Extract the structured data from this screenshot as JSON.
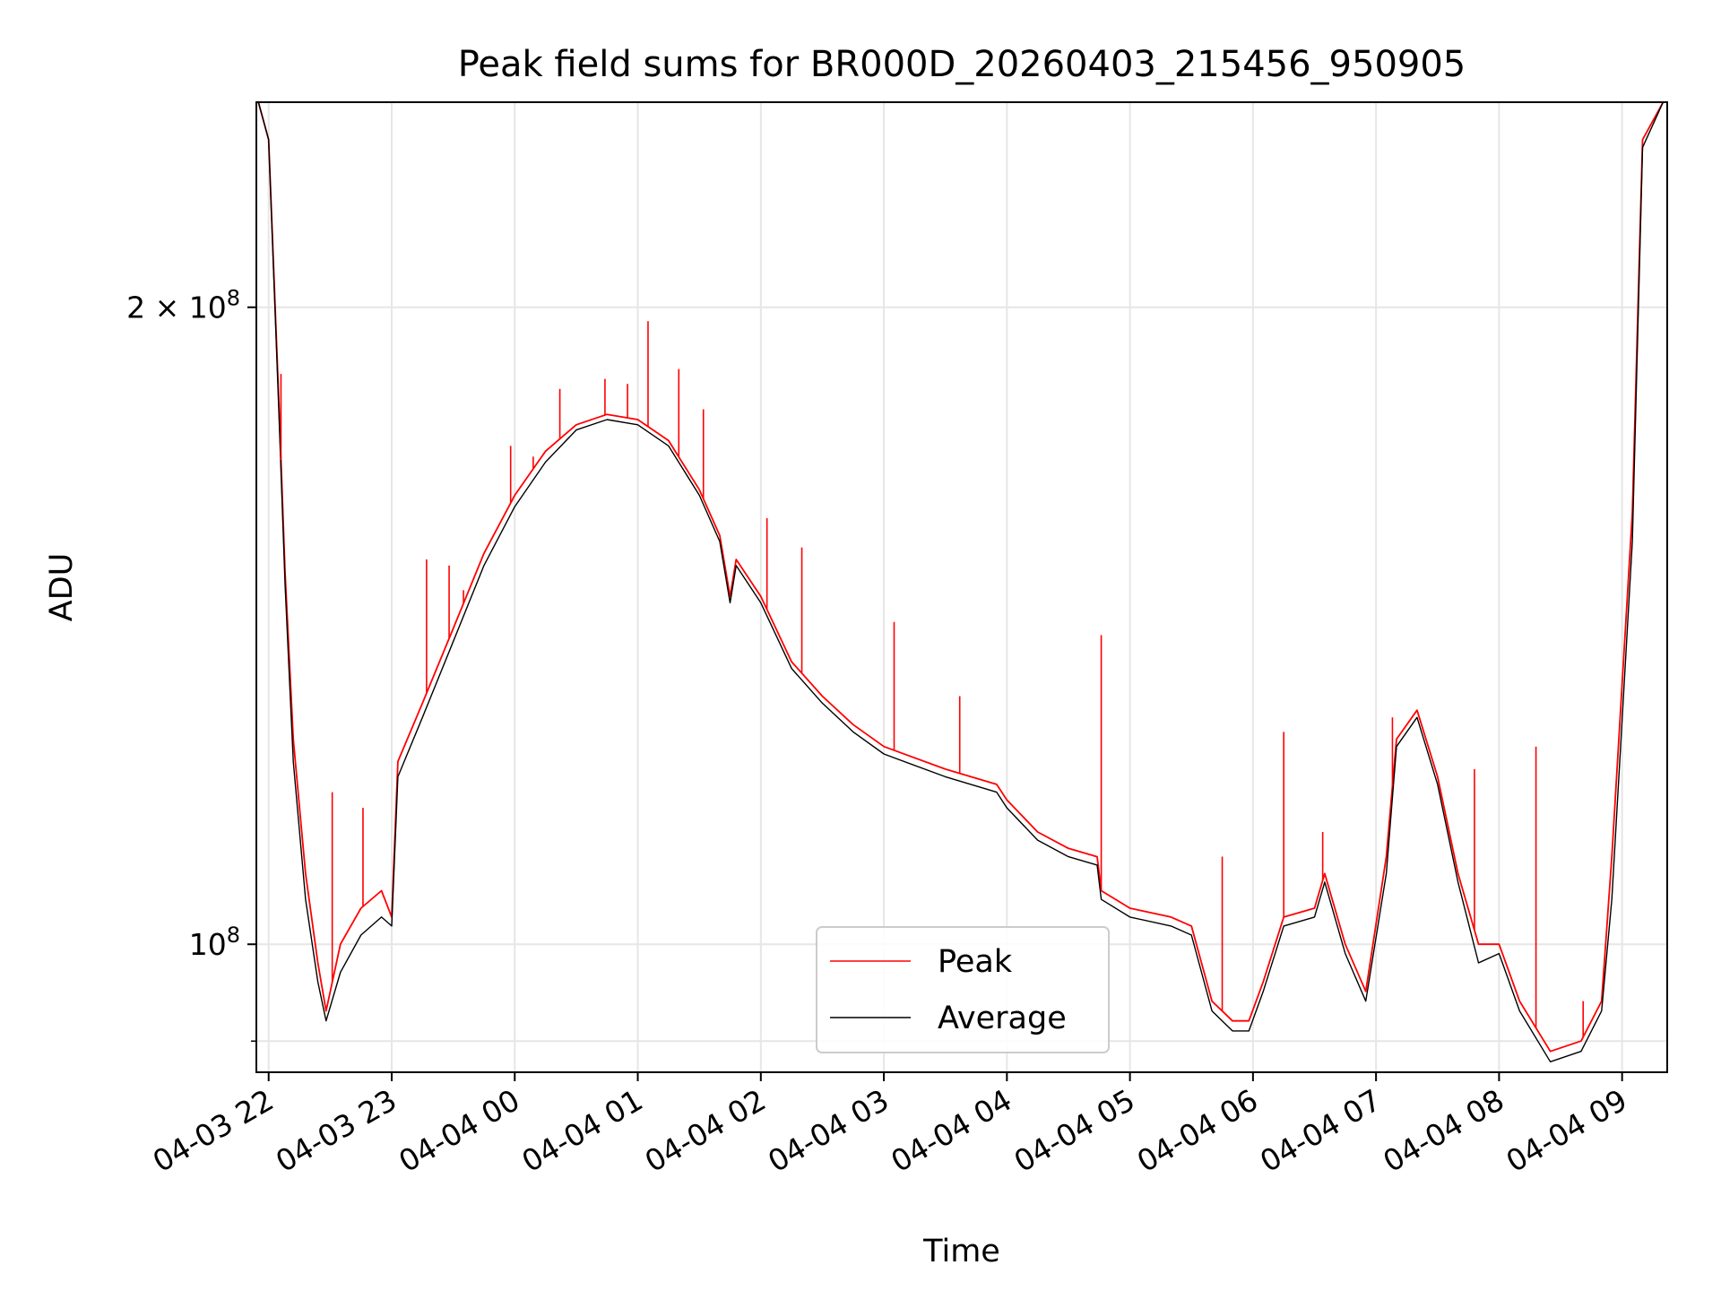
{
  "chart_data": {
    "type": "line",
    "title": "Peak field sums for BR000D_20260403_215456_950905",
    "xlabel": "Time",
    "ylabel": "ADU",
    "yscale": "log",
    "ylim": [
      87000000,
      250000000
    ],
    "xlim": [
      "2026-04-03 21:54",
      "2026-04-04 09:22"
    ],
    "grid": true,
    "legend_position": "bottom-center",
    "x_ticks": [
      {
        "t": "2026-04-03 22:00",
        "label": "04-03 22"
      },
      {
        "t": "2026-04-03 23:00",
        "label": "04-03 23"
      },
      {
        "t": "2026-04-04 00:00",
        "label": "04-04 00"
      },
      {
        "t": "2026-04-04 01:00",
        "label": "04-04 01"
      },
      {
        "t": "2026-04-04 02:00",
        "label": "04-04 02"
      },
      {
        "t": "2026-04-04 03:00",
        "label": "04-04 03"
      },
      {
        "t": "2026-04-04 04:00",
        "label": "04-04 04"
      },
      {
        "t": "2026-04-04 05:00",
        "label": "04-04 05"
      },
      {
        "t": "2026-04-04 06:00",
        "label": "04-04 06"
      },
      {
        "t": "2026-04-04 07:00",
        "label": "04-04 07"
      },
      {
        "t": "2026-04-04 08:00",
        "label": "04-04 08"
      },
      {
        "t": "2026-04-04 09:00",
        "label": "04-04 09"
      }
    ],
    "y_ticks": [
      {
        "value": 100000000,
        "base": "10",
        "exp": "8",
        "coef": ""
      },
      {
        "value": 200000000,
        "base": "10",
        "exp": "8",
        "coef": "2 × "
      }
    ],
    "series": [
      {
        "name": "Peak",
        "color": "#ff0000",
        "points": [
          [
            "2026-04-03 21:55",
            250000000
          ],
          [
            "2026-04-03 22:00",
            240000000
          ],
          [
            "2026-04-03 22:05",
            180000000
          ],
          [
            "2026-04-03 22:08",
            150000000
          ],
          [
            "2026-04-03 22:12",
            125000000
          ],
          [
            "2026-04-03 22:18",
            108000000
          ],
          [
            "2026-04-03 22:24",
            98000000
          ],
          [
            "2026-04-03 22:28",
            93000000
          ],
          [
            "2026-04-03 22:35",
            100000000
          ],
          [
            "2026-04-03 22:45",
            104000000
          ],
          [
            "2026-04-03 22:55",
            106000000
          ],
          [
            "2026-04-03 23:00",
            103000000
          ],
          [
            "2026-04-03 23:03",
            122000000
          ],
          [
            "2026-04-03 23:15",
            130000000
          ],
          [
            "2026-04-03 23:30",
            141000000
          ],
          [
            "2026-04-03 23:45",
            153000000
          ],
          [
            "2026-04-04 00:00",
            163000000
          ],
          [
            "2026-04-04 00:15",
            171000000
          ],
          [
            "2026-04-04 00:30",
            176000000
          ],
          [
            "2026-04-04 00:45",
            178000000
          ],
          [
            "2026-04-04 01:00",
            177000000
          ],
          [
            "2026-04-04 01:15",
            173000000
          ],
          [
            "2026-04-04 01:30",
            164000000
          ],
          [
            "2026-04-04 01:40",
            156000000
          ],
          [
            "2026-04-04 01:45",
            146000000
          ],
          [
            "2026-04-04 01:48",
            152000000
          ],
          [
            "2026-04-04 02:00",
            146000000
          ],
          [
            "2026-04-04 02:15",
            136000000
          ],
          [
            "2026-04-04 02:30",
            131000000
          ],
          [
            "2026-04-04 02:45",
            127000000
          ],
          [
            "2026-04-04 03:00",
            124000000
          ],
          [
            "2026-04-04 03:30",
            121000000
          ],
          [
            "2026-04-04 03:55",
            119000000
          ],
          [
            "2026-04-04 04:00",
            117000000
          ],
          [
            "2026-04-04 04:15",
            113000000
          ],
          [
            "2026-04-04 04:30",
            111000000
          ],
          [
            "2026-04-04 04:44",
            110000000
          ],
          [
            "2026-04-04 04:46",
            106000000
          ],
          [
            "2026-04-04 05:00",
            104000000
          ],
          [
            "2026-04-04 05:20",
            103000000
          ],
          [
            "2026-04-04 05:30",
            102000000
          ],
          [
            "2026-04-04 05:40",
            94000000
          ],
          [
            "2026-04-04 05:50",
            92000000
          ],
          [
            "2026-04-04 05:58",
            92000000
          ],
          [
            "2026-04-04 06:05",
            96000000
          ],
          [
            "2026-04-04 06:15",
            103000000
          ],
          [
            "2026-04-04 06:30",
            104000000
          ],
          [
            "2026-04-04 06:35",
            108000000
          ],
          [
            "2026-04-04 06:45",
            100000000
          ],
          [
            "2026-04-04 06:55",
            95000000
          ],
          [
            "2026-04-04 07:05",
            110000000
          ],
          [
            "2026-04-04 07:10",
            125000000
          ],
          [
            "2026-04-04 07:20",
            129000000
          ],
          [
            "2026-04-04 07:30",
            120000000
          ],
          [
            "2026-04-04 07:40",
            108000000
          ],
          [
            "2026-04-04 07:50",
            100000000
          ],
          [
            "2026-04-04 08:00",
            100000000
          ],
          [
            "2026-04-04 08:10",
            94000000
          ],
          [
            "2026-04-04 08:25",
            89000000
          ],
          [
            "2026-04-04 08:40",
            90000000
          ],
          [
            "2026-04-04 08:50",
            94000000
          ],
          [
            "2026-04-04 08:55",
            110000000
          ],
          [
            "2026-04-04 09:05",
            160000000
          ],
          [
            "2026-04-04 09:10",
            240000000
          ],
          [
            "2026-04-04 09:20",
            250000000
          ]
        ]
      },
      {
        "name": "Average",
        "color": "#000000",
        "points": [
          [
            "2026-04-03 21:55",
            250000000
          ],
          [
            "2026-04-03 22:00",
            240000000
          ],
          [
            "2026-04-03 22:05",
            178000000
          ],
          [
            "2026-04-03 22:08",
            148000000
          ],
          [
            "2026-04-03 22:12",
            122000000
          ],
          [
            "2026-04-03 22:18",
            105000000
          ],
          [
            "2026-04-03 22:24",
            96000000
          ],
          [
            "2026-04-03 22:28",
            92000000
          ],
          [
            "2026-04-03 22:35",
            97000000
          ],
          [
            "2026-04-03 22:45",
            101000000
          ],
          [
            "2026-04-03 22:55",
            103000000
          ],
          [
            "2026-04-03 23:00",
            102000000
          ],
          [
            "2026-04-03 23:03",
            120000000
          ],
          [
            "2026-04-03 23:15",
            128000000
          ],
          [
            "2026-04-03 23:30",
            139000000
          ],
          [
            "2026-04-03 23:45",
            151000000
          ],
          [
            "2026-04-04 00:00",
            161000000
          ],
          [
            "2026-04-04 00:15",
            169000000
          ],
          [
            "2026-04-04 00:30",
            175000000
          ],
          [
            "2026-04-04 00:45",
            177000000
          ],
          [
            "2026-04-04 01:00",
            176000000
          ],
          [
            "2026-04-04 01:15",
            172000000
          ],
          [
            "2026-04-04 01:30",
            163000000
          ],
          [
            "2026-04-04 01:40",
            155000000
          ],
          [
            "2026-04-04 01:45",
            145000000
          ],
          [
            "2026-04-04 01:48",
            151000000
          ],
          [
            "2026-04-04 02:00",
            145000000
          ],
          [
            "2026-04-04 02:15",
            135000000
          ],
          [
            "2026-04-04 02:30",
            130000000
          ],
          [
            "2026-04-04 02:45",
            126000000
          ],
          [
            "2026-04-04 03:00",
            123000000
          ],
          [
            "2026-04-04 03:30",
            120000000
          ],
          [
            "2026-04-04 03:55",
            118000000
          ],
          [
            "2026-04-04 04:00",
            116000000
          ],
          [
            "2026-04-04 04:15",
            112000000
          ],
          [
            "2026-04-04 04:30",
            110000000
          ],
          [
            "2026-04-04 04:44",
            109000000
          ],
          [
            "2026-04-04 04:46",
            105000000
          ],
          [
            "2026-04-04 05:00",
            103000000
          ],
          [
            "2026-04-04 05:20",
            102000000
          ],
          [
            "2026-04-04 05:30",
            101000000
          ],
          [
            "2026-04-04 05:40",
            93000000
          ],
          [
            "2026-04-04 05:50",
            91000000
          ],
          [
            "2026-04-04 05:58",
            91000000
          ],
          [
            "2026-04-04 06:05",
            95000000
          ],
          [
            "2026-04-04 06:15",
            102000000
          ],
          [
            "2026-04-04 06:30",
            103000000
          ],
          [
            "2026-04-04 06:35",
            107000000
          ],
          [
            "2026-04-04 06:45",
            99000000
          ],
          [
            "2026-04-04 06:55",
            94000000
          ],
          [
            "2026-04-04 07:05",
            108000000
          ],
          [
            "2026-04-04 07:10",
            124000000
          ],
          [
            "2026-04-04 07:20",
            128000000
          ],
          [
            "2026-04-04 07:30",
            119000000
          ],
          [
            "2026-04-04 07:40",
            107000000
          ],
          [
            "2026-04-04 07:50",
            98000000
          ],
          [
            "2026-04-04 08:00",
            99000000
          ],
          [
            "2026-04-04 08:10",
            93000000
          ],
          [
            "2026-04-04 08:25",
            88000000
          ],
          [
            "2026-04-04 08:40",
            89000000
          ],
          [
            "2026-04-04 08:50",
            93000000
          ],
          [
            "2026-04-04 08:55",
            105000000
          ],
          [
            "2026-04-04 09:05",
            155000000
          ],
          [
            "2026-04-04 09:10",
            238000000
          ],
          [
            "2026-04-04 09:20",
            250000000
          ]
        ]
      }
    ],
    "spikes": [
      {
        "t": "2026-04-03 22:06",
        "value": 186000000
      },
      {
        "t": "2026-04-03 22:31",
        "value": 118000000
      },
      {
        "t": "2026-04-03 22:46",
        "value": 116000000
      },
      {
        "t": "2026-04-03 23:17",
        "value": 152000000
      },
      {
        "t": "2026-04-03 23:28",
        "value": 151000000
      },
      {
        "t": "2026-04-03 23:35",
        "value": 147000000
      },
      {
        "t": "2026-04-03 23:58",
        "value": 172000000
      },
      {
        "t": "2026-04-04 00:09",
        "value": 170000000
      },
      {
        "t": "2026-04-04 00:22",
        "value": 183000000
      },
      {
        "t": "2026-04-04 00:44",
        "value": 185000000
      },
      {
        "t": "2026-04-04 00:55",
        "value": 184000000
      },
      {
        "t": "2026-04-04 01:05",
        "value": 197000000
      },
      {
        "t": "2026-04-04 01:20",
        "value": 187000000
      },
      {
        "t": "2026-04-04 01:32",
        "value": 179000000
      },
      {
        "t": "2026-04-04 02:03",
        "value": 159000000
      },
      {
        "t": "2026-04-04 02:20",
        "value": 154000000
      },
      {
        "t": "2026-04-04 03:05",
        "value": 142000000
      },
      {
        "t": "2026-04-04 03:37",
        "value": 131000000
      },
      {
        "t": "2026-04-04 04:46",
        "value": 140000000
      },
      {
        "t": "2026-04-04 05:45",
        "value": 110000000
      },
      {
        "t": "2026-04-04 06:15",
        "value": 126000000
      },
      {
        "t": "2026-04-04 06:34",
        "value": 113000000
      },
      {
        "t": "2026-04-04 07:08",
        "value": 128000000
      },
      {
        "t": "2026-04-04 07:48",
        "value": 121000000
      },
      {
        "t": "2026-04-04 08:18",
        "value": 124000000
      },
      {
        "t": "2026-04-04 08:41",
        "value": 94000000
      }
    ]
  }
}
